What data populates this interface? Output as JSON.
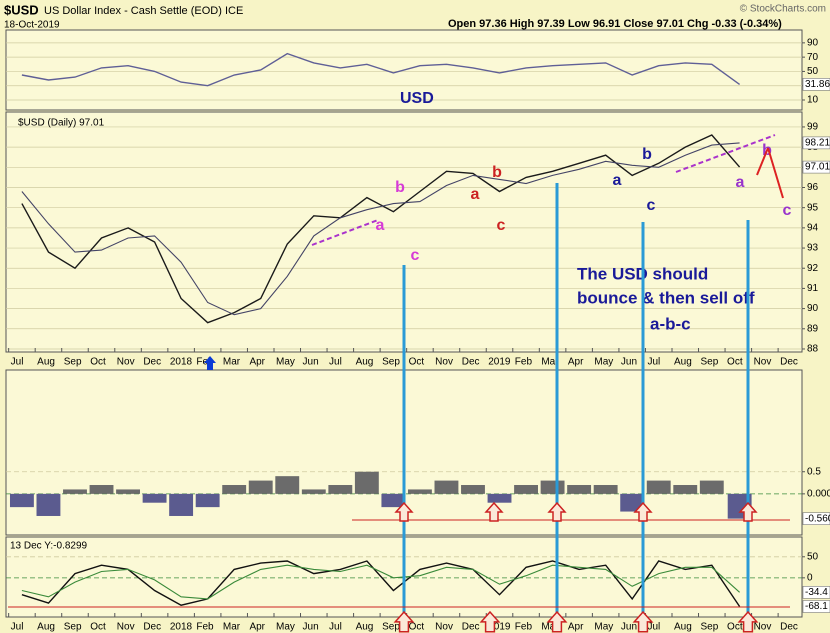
{
  "header": {
    "symbol": "$USD",
    "name": "US Dollar Index - Cash Settle (EOD) ICE",
    "date": "18-Oct-2019",
    "quote": "Open 97.36 High 97.39 Low 96.91 Close 97.01 Chg -0.33 (-0.34%)",
    "watermark": "© StockCharts.com"
  },
  "chart_data": [
    {
      "type": "line",
      "label": "USD",
      "grid": true,
      "x": [
        0.5,
        1.5,
        2.5,
        3.5,
        4.5,
        5.5,
        6.5,
        7.5,
        8.5,
        9.5,
        10.5,
        11.5,
        12.5,
        13.5,
        14.5,
        15.5,
        16.5,
        17.5,
        18.5,
        19.5,
        20.5,
        21.5,
        22.5,
        23.5,
        24.5,
        25.5,
        26.5,
        27.55
      ],
      "xlim": [
        -0.1,
        29.9
      ],
      "ylim": [
        -4,
        108
      ],
      "yticks": [
        90,
        70,
        50,
        30,
        10
      ],
      "series": [
        {
          "color": "#5f5f96",
          "values": [
            45,
            38,
            42,
            55,
            58,
            50,
            35,
            30,
            45,
            52,
            75,
            62,
            55,
            60,
            48,
            58,
            60,
            55,
            48,
            55,
            58,
            60,
            62,
            45,
            58,
            62,
            60,
            31.86
          ]
        }
      ],
      "last_labels": [
        {
          "value": 31.86,
          "label": "31.86"
        }
      ]
    },
    {
      "type": "line",
      "grid": true,
      "x": [
        0.5,
        1.5,
        2.5,
        3.5,
        4.5,
        5.5,
        6.5,
        7.5,
        8.5,
        9.5,
        10.5,
        11.5,
        12.5,
        13.5,
        14.5,
        15.5,
        16.5,
        17.5,
        18.5,
        19.5,
        20.5,
        21.5,
        22.5,
        23.5,
        24.5,
        25.5,
        26.5,
        27.55
      ],
      "xlim": [
        -0.1,
        29.9
      ],
      "ylim": [
        87.85,
        99.74
      ],
      "yticks": [
        88,
        89,
        90,
        91,
        92,
        93,
        94,
        95,
        96,
        97,
        98,
        99
      ],
      "xticks": [
        {
          "value": 0,
          "label": "Jul"
        },
        {
          "value": 1,
          "label": "Aug"
        },
        {
          "value": 2,
          "label": "Sep"
        },
        {
          "value": 3,
          "label": "Oct"
        },
        {
          "value": 4,
          "label": "Nov"
        },
        {
          "value": 5,
          "label": "Dec"
        },
        {
          "value": 6,
          "label": "2018"
        },
        {
          "value": 7,
          "label": "Feb"
        },
        {
          "value": 8,
          "label": "Mar"
        },
        {
          "value": 9,
          "label": "Apr"
        },
        {
          "value": 10,
          "label": "May"
        },
        {
          "value": 11,
          "label": "Jun"
        },
        {
          "value": 12,
          "label": "Jul"
        },
        {
          "value": 13,
          "label": "Aug"
        },
        {
          "value": 14,
          "label": "Sep"
        },
        {
          "value": 15,
          "label": "Oct"
        },
        {
          "value": 16,
          "label": "Nov"
        },
        {
          "value": 17,
          "label": "Dec"
        },
        {
          "value": 18,
          "label": "2019"
        },
        {
          "value": 19,
          "label": "Feb"
        },
        {
          "value": 20,
          "label": "Mar"
        },
        {
          "value": 21,
          "label": "Apr"
        },
        {
          "value": 22,
          "label": "May"
        },
        {
          "value": 23,
          "label": "Jun"
        },
        {
          "value": 24,
          "label": "Jul"
        },
        {
          "value": 25,
          "label": "Aug"
        },
        {
          "value": 26,
          "label": "Sep"
        },
        {
          "value": 27,
          "label": "Oct"
        },
        {
          "value": 28,
          "label": "Nov"
        },
        {
          "value": 29,
          "label": "Dec"
        }
      ],
      "series": [
        {
          "name": "$USD (Daily) 97.01",
          "color": "#1a1a1a",
          "values": [
            95.2,
            92.8,
            92.0,
            93.5,
            94.0,
            93.3,
            90.5,
            89.3,
            89.8,
            90.5,
            93.2,
            94.6,
            94.5,
            95.5,
            94.8,
            95.8,
            96.8,
            96.7,
            95.8,
            96.5,
            96.8,
            97.2,
            97.6,
            96.6,
            97.2,
            98.0,
            98.6,
            97.01
          ]
        },
        {
          "color": "#444466",
          "values": [
            95.8,
            94.2,
            92.8,
            92.9,
            93.5,
            93.6,
            92.3,
            90.3,
            89.7,
            90.0,
            91.6,
            93.6,
            94.5,
            94.9,
            95.2,
            95.3,
            96.1,
            96.6,
            96.4,
            96.2,
            96.6,
            96.9,
            97.3,
            97.1,
            97.0,
            97.6,
            98.1,
            98.21
          ]
        }
      ],
      "last_labels": [
        {
          "value": 98.21,
          "label": "98.21"
        },
        {
          "value": 97.01,
          "label": "97.01"
        }
      ],
      "wave_labels": [
        {
          "text": "a",
          "color": "#d63bd6"
        },
        {
          "text": "b",
          "color": "#d63bd6"
        },
        {
          "text": "c",
          "color": "#d63bd6"
        },
        {
          "text": "a",
          "color": "#cc2222"
        },
        {
          "text": "b",
          "color": "#cc2222"
        },
        {
          "text": "c",
          "color": "#cc2222"
        },
        {
          "text": "a",
          "color": "#1a1a99"
        },
        {
          "text": "b",
          "color": "#1a1a99"
        },
        {
          "text": "c",
          "color": "#1a1a99"
        },
        {
          "text": "a",
          "color": "#9933cc"
        },
        {
          "text": "b",
          "color": "#9933cc"
        },
        {
          "text": "c",
          "color": "#9933cc"
        }
      ],
      "notes": [
        "The USD should",
        "bounce & then sell off",
        "a-b-c"
      ]
    },
    {
      "type": "bar",
      "color": "#6b6b6b",
      "neg_color": "#5b5b8f",
      "x": [
        0.5,
        1.5,
        2.5,
        3.5,
        4.5,
        5.5,
        6.5,
        7.5,
        8.5,
        9.5,
        10.5,
        11.5,
        12.5,
        13.5,
        14.5,
        15.5,
        16.5,
        17.5,
        18.5,
        19.5,
        20.5,
        21.5,
        22.5,
        23.5,
        24.5,
        25.5,
        26.5,
        27.55
      ],
      "xlim": [
        -0.1,
        29.9
      ],
      "ylim": [
        -0.93,
        2.8
      ],
      "yticks": [
        0.5,
        {
          "value": 0,
          "label": "0.000"
        }
      ],
      "values": [
        -0.3,
        -0.5,
        0.1,
        0.2,
        0.1,
        -0.2,
        -0.5,
        -0.3,
        0.2,
        0.3,
        0.4,
        0.1,
        0.2,
        0.5,
        -0.3,
        0.1,
        0.3,
        0.2,
        -0.2,
        0.2,
        0.3,
        0.2,
        0.2,
        -0.4,
        0.3,
        0.2,
        0.3,
        -0.56
      ],
      "last_labels": [
        {
          "value": -0.56,
          "label": "-0.560"
        }
      ]
    },
    {
      "type": "line",
      "legend": "13 Dec Y:-0.8299",
      "x": [
        0.5,
        1.5,
        2.5,
        3.5,
        4.5,
        5.5,
        6.5,
        7.5,
        8.5,
        9.5,
        10.5,
        11.5,
        12.5,
        13.5,
        14.5,
        15.5,
        16.5,
        17.5,
        18.5,
        19.5,
        20.5,
        21.5,
        22.5,
        23.5,
        24.5,
        25.5,
        26.5,
        27.55
      ],
      "xlim": [
        -0.1,
        29.9
      ],
      "ylim": [
        -93,
        97
      ],
      "yticks": [
        50,
        0
      ],
      "xticks": [
        {
          "value": 0,
          "label": "Jul"
        },
        {
          "value": 1,
          "label": "Aug"
        },
        {
          "value": 2,
          "label": "Sep"
        },
        {
          "value": 3,
          "label": "Oct"
        },
        {
          "value": 4,
          "label": "Nov"
        },
        {
          "value": 5,
          "label": "Dec"
        },
        {
          "value": 6,
          "label": "2018"
        },
        {
          "value": 7,
          "label": "Feb"
        },
        {
          "value": 8,
          "label": "Mar"
        },
        {
          "value": 9,
          "label": "Apr"
        },
        {
          "value": 10,
          "label": "May"
        },
        {
          "value": 11,
          "label": "Jun"
        },
        {
          "value": 12,
          "label": "Jul"
        },
        {
          "value": 13,
          "label": "Aug"
        },
        {
          "value": 14,
          "label": "Sep"
        },
        {
          "value": 15,
          "label": "Oct"
        },
        {
          "value": 16,
          "label": "Nov"
        },
        {
          "value": 17,
          "label": "Dec"
        },
        {
          "value": 18,
          "label": "2019"
        },
        {
          "value": 19,
          "label": "Feb"
        },
        {
          "value": 20,
          "label": "Mar"
        },
        {
          "value": 21,
          "label": "Apr"
        },
        {
          "value": 22,
          "label": "May"
        },
        {
          "value": 23,
          "label": "Jun"
        },
        {
          "value": 24,
          "label": "Jul"
        },
        {
          "value": 25,
          "label": "Aug"
        },
        {
          "value": 26,
          "label": "Sep"
        },
        {
          "value": 27,
          "label": "Oct"
        },
        {
          "value": 28,
          "label": "Nov"
        },
        {
          "value": 29,
          "label": "Dec"
        }
      ],
      "series": [
        {
          "color": "#111111",
          "values": [
            -40,
            -60,
            10,
            30,
            20,
            -30,
            -65,
            -50,
            20,
            35,
            40,
            10,
            20,
            40,
            -30,
            20,
            35,
            20,
            -40,
            25,
            40,
            20,
            30,
            -50,
            40,
            20,
            30,
            -68.1
          ]
        },
        {
          "color": "#3a8a3a",
          "values": [
            -30,
            -45,
            -10,
            15,
            20,
            -5,
            -45,
            -50,
            -10,
            20,
            30,
            20,
            15,
            30,
            0,
            5,
            25,
            20,
            -15,
            5,
            30,
            25,
            20,
            -20,
            10,
            25,
            25,
            -34.4
          ]
        }
      ],
      "last_labels": [
        {
          "value": -34.4,
          "label": "-34.4"
        },
        {
          "value": -68.1,
          "label": "-68.1"
        }
      ]
    }
  ]
}
